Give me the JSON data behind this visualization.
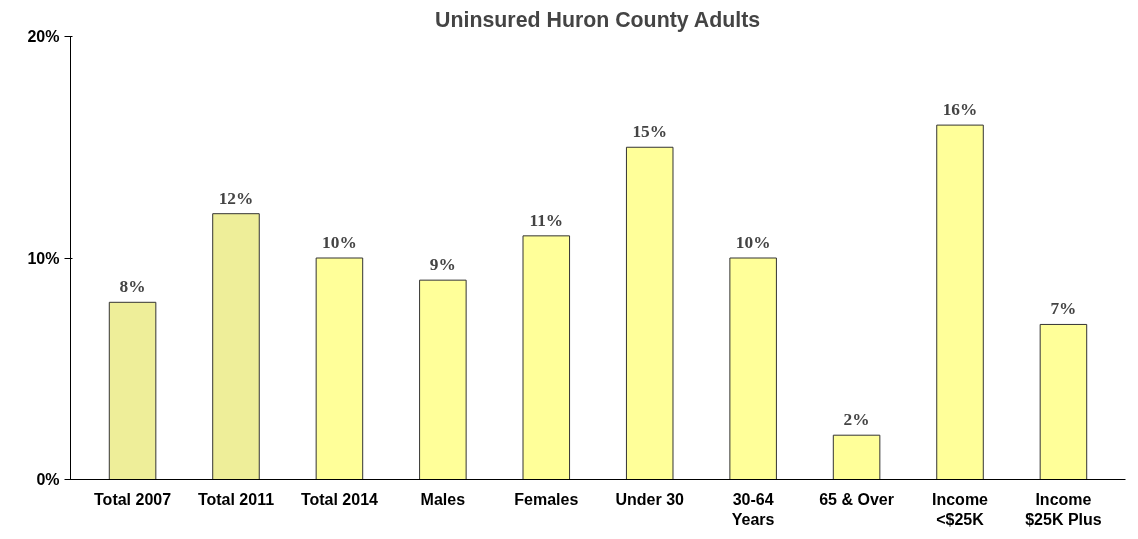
{
  "chart_data": {
    "type": "bar",
    "title": "Uninsured Huron County Adults",
    "categories": [
      "Total 2007",
      "Total 2011",
      "Total 2014",
      "Males",
      "Females",
      "Under 30",
      "30-64\nYears",
      "65 & Over",
      "Income\n<$25K",
      "Income\n$25K Plus"
    ],
    "values": [
      8,
      12,
      10,
      9,
      11,
      15,
      10,
      2,
      16,
      7
    ],
    "value_labels": [
      "8%",
      "12%",
      "10%",
      "9%",
      "11%",
      "15%",
      "10%",
      "2%",
      "16%",
      "7%"
    ],
    "colors": [
      "#eeee99",
      "#eeee99",
      "#ffff99",
      "#ffff99",
      "#ffff99",
      "#ffff99",
      "#ffff99",
      "#ffff99",
      "#ffff99",
      "#ffff99"
    ],
    "ylim": [
      0,
      20
    ],
    "yticks": [
      {
        "value": 0,
        "label": "0%"
      },
      {
        "value": 10,
        "label": "10%"
      },
      {
        "value": 20,
        "label": "20%"
      }
    ],
    "grid": false
  }
}
